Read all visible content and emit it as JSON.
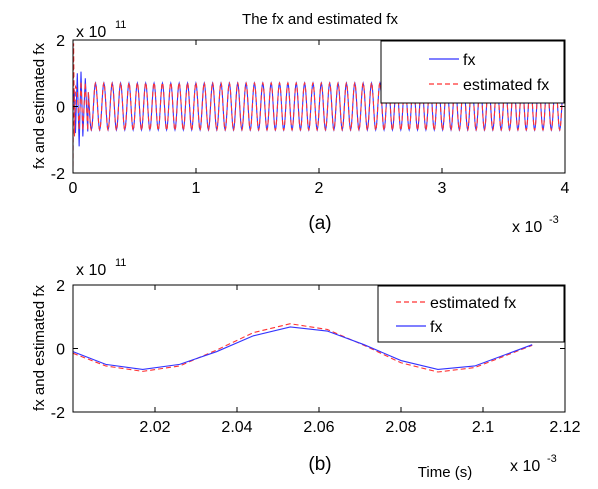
{
  "chart_data": [
    {
      "type": "line",
      "panel_label": "(a)",
      "title": "The fx and estimated fx",
      "ylabel": "fx and estimated fx",
      "xlabel": "",
      "x_exponent_label": "x 10",
      "x_exponent": "-3",
      "y_exponent_label": "x 10",
      "y_exponent": "11",
      "xlim": [
        0,
        4
      ],
      "ylim": [
        -2,
        2
      ],
      "x_ticks": [
        0,
        1,
        2,
        3,
        4
      ],
      "x_tick_labels": [
        "0",
        "1",
        "2",
        "3",
        "4"
      ],
      "y_ticks": [
        -2,
        0,
        2
      ],
      "y_tick_labels": [
        "-2",
        "0",
        "2"
      ],
      "grid": false,
      "legend_position": "top-right",
      "series": [
        {
          "name": "fx",
          "color": "#3333ff",
          "dash": "solid",
          "model": {
            "amplitude": 0.7,
            "period": 0.068,
            "phase": 0,
            "start": 0.03,
            "transient": [
              [
                0.0,
                0.0
              ],
              [
                0.01,
                0.5
              ],
              [
                0.02,
                -0.8
              ],
              [
                0.035,
                1.0
              ],
              [
                0.05,
                -1.2
              ],
              [
                0.065,
                1.05
              ],
              [
                0.08,
                -0.9
              ],
              [
                0.1,
                0.85
              ],
              [
                0.12,
                -0.75
              ]
            ]
          }
        },
        {
          "name": "estimated fx",
          "color": "#ff3333",
          "dash": "dashed",
          "model": {
            "amplitude": 0.72,
            "period": 0.068,
            "phase": 0,
            "start": 0.03,
            "transient": [
              [
                0.0,
                -1.8
              ],
              [
                0.005,
                1.9
              ],
              [
                0.012,
                -0.9
              ],
              [
                0.02,
                0.6
              ],
              [
                0.035,
                0.5
              ],
              [
                0.05,
                -0.7
              ],
              [
                0.065,
                0.75
              ],
              [
                0.08,
                -0.72
              ],
              [
                0.1,
                0.72
              ],
              [
                0.12,
                -0.72
              ]
            ]
          }
        }
      ]
    },
    {
      "type": "line",
      "panel_label": "(b)",
      "title": "",
      "ylabel": "fx and estimated fx",
      "xlabel": "Time (s)",
      "x_exponent_label": "x 10",
      "x_exponent": "-3",
      "y_exponent_label": "x 10",
      "y_exponent": "11",
      "xlim": [
        2.0,
        2.12
      ],
      "ylim": [
        -2,
        2
      ],
      "x_ticks": [
        2.02,
        2.04,
        2.06,
        2.08,
        2.1,
        2.12
      ],
      "x_tick_labels": [
        "2.02",
        "2.04",
        "2.06",
        "2.08",
        "2.1",
        "2.12"
      ],
      "y_ticks": [
        -2,
        0,
        2
      ],
      "y_tick_labels": [
        "-2",
        "0",
        "2"
      ],
      "grid": false,
      "legend_position": "top-right",
      "series": [
        {
          "name": "estimated fx",
          "color": "#ff3333",
          "dash": "dashed",
          "x": [
            2.0,
            2.008,
            2.017,
            2.026,
            2.035,
            2.044,
            2.053,
            2.062,
            2.071,
            2.08,
            2.089,
            2.098,
            2.107,
            2.112
          ],
          "y": [
            -0.15,
            -0.55,
            -0.72,
            -0.55,
            -0.05,
            0.5,
            0.78,
            0.6,
            0.1,
            -0.45,
            -0.74,
            -0.6,
            -0.15,
            0.1
          ]
        },
        {
          "name": "fx",
          "color": "#3333ff",
          "dash": "solid",
          "x": [
            2.0,
            2.008,
            2.017,
            2.026,
            2.035,
            2.044,
            2.053,
            2.062,
            2.071,
            2.08,
            2.089,
            2.098,
            2.107,
            2.112
          ],
          "y": [
            -0.1,
            -0.5,
            -0.66,
            -0.5,
            -0.1,
            0.4,
            0.68,
            0.55,
            0.12,
            -0.38,
            -0.66,
            -0.55,
            -0.12,
            0.12
          ]
        }
      ]
    }
  ]
}
